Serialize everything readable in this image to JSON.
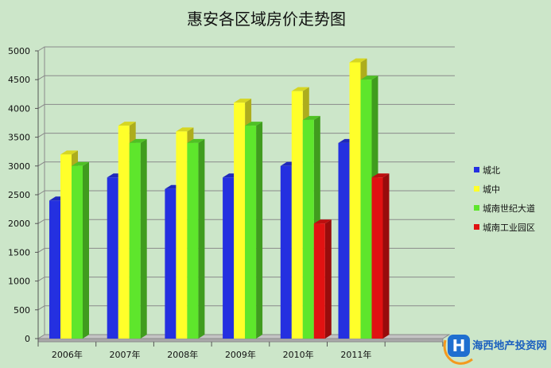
{
  "colors": {
    "background": "#cce6c9"
  },
  "chart_data": {
    "type": "bar",
    "bar_style": "3d-clustered",
    "title": "惠安各区域房价走势图",
    "categories": [
      "2006年",
      "2007年",
      "2008年",
      "2009年",
      "2010年",
      "2011年"
    ],
    "series": [
      {
        "name": "城北",
        "color": "#2430e0",
        "values": [
          2400,
          2800,
          2600,
          2800,
          3000,
          3400
        ]
      },
      {
        "name": "城中",
        "color": "#ffff2a",
        "values": [
          3200,
          3700,
          3600,
          4100,
          4300,
          4800
        ]
      },
      {
        "name": "城南世纪大道",
        "color": "#5ee62c",
        "values": [
          3000,
          3400,
          3400,
          3700,
          3800,
          4500
        ]
      },
      {
        "name": "城南工业园区",
        "color": "#e01212",
        "values": [
          null,
          null,
          null,
          null,
          2000,
          2800
        ]
      }
    ],
    "ylim": [
      0,
      5000
    ],
    "yticks": [
      0,
      500,
      1000,
      1500,
      2000,
      2500,
      3000,
      3500,
      4000,
      4500,
      5000
    ],
    "grid": true,
    "legend": "right"
  },
  "watermark": {
    "logo_letter": "H",
    "text": "海西地产投资网"
  }
}
